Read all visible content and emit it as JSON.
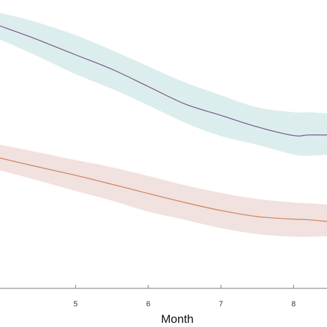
{
  "chart_data": {
    "type": "line",
    "xlabel": "Month",
    "ylabel": "",
    "xlim": [
      3.96,
      8.46
    ],
    "x_ticks": [
      5,
      6,
      7,
      8
    ],
    "x_tick_labels": [
      "5",
      "6",
      "7",
      "8"
    ],
    "ylim": [
      0.0,
      1.0
    ],
    "grid": false,
    "series": [
      {
        "color": "#7e5d8c",
        "band_color": "#dceded",
        "x": [
          3.96,
          4.4,
          5.0,
          5.5,
          6.0,
          6.5,
          7.0,
          7.5,
          8.0,
          8.2,
          8.46
        ],
        "values": [
          0.91,
          0.87,
          0.81,
          0.76,
          0.7,
          0.64,
          0.6,
          0.56,
          0.53,
          0.532,
          0.532
        ],
        "upper": [
          0.955,
          0.928,
          0.878,
          0.826,
          0.77,
          0.715,
          0.67,
          0.628,
          0.611,
          0.611,
          0.607
        ],
        "lower": [
          0.863,
          0.814,
          0.743,
          0.692,
          0.635,
          0.575,
          0.528,
          0.498,
          0.464,
          0.46,
          0.463
        ]
      },
      {
        "color": "#d1875a",
        "band_color": "#f1e1df",
        "x": [
          3.96,
          4.4,
          5.0,
          5.5,
          6.0,
          6.5,
          7.0,
          7.5,
          8.0,
          8.2,
          8.46
        ],
        "values": [
          0.452,
          0.426,
          0.392,
          0.361,
          0.329,
          0.298,
          0.27,
          0.249,
          0.24,
          0.238,
          0.232
        ],
        "upper": [
          0.498,
          0.476,
          0.445,
          0.42,
          0.39,
          0.358,
          0.331,
          0.31,
          0.298,
          0.295,
          0.291
        ],
        "lower": [
          0.409,
          0.38,
          0.338,
          0.304,
          0.266,
          0.238,
          0.209,
          0.188,
          0.179,
          0.179,
          0.181
        ]
      }
    ]
  }
}
